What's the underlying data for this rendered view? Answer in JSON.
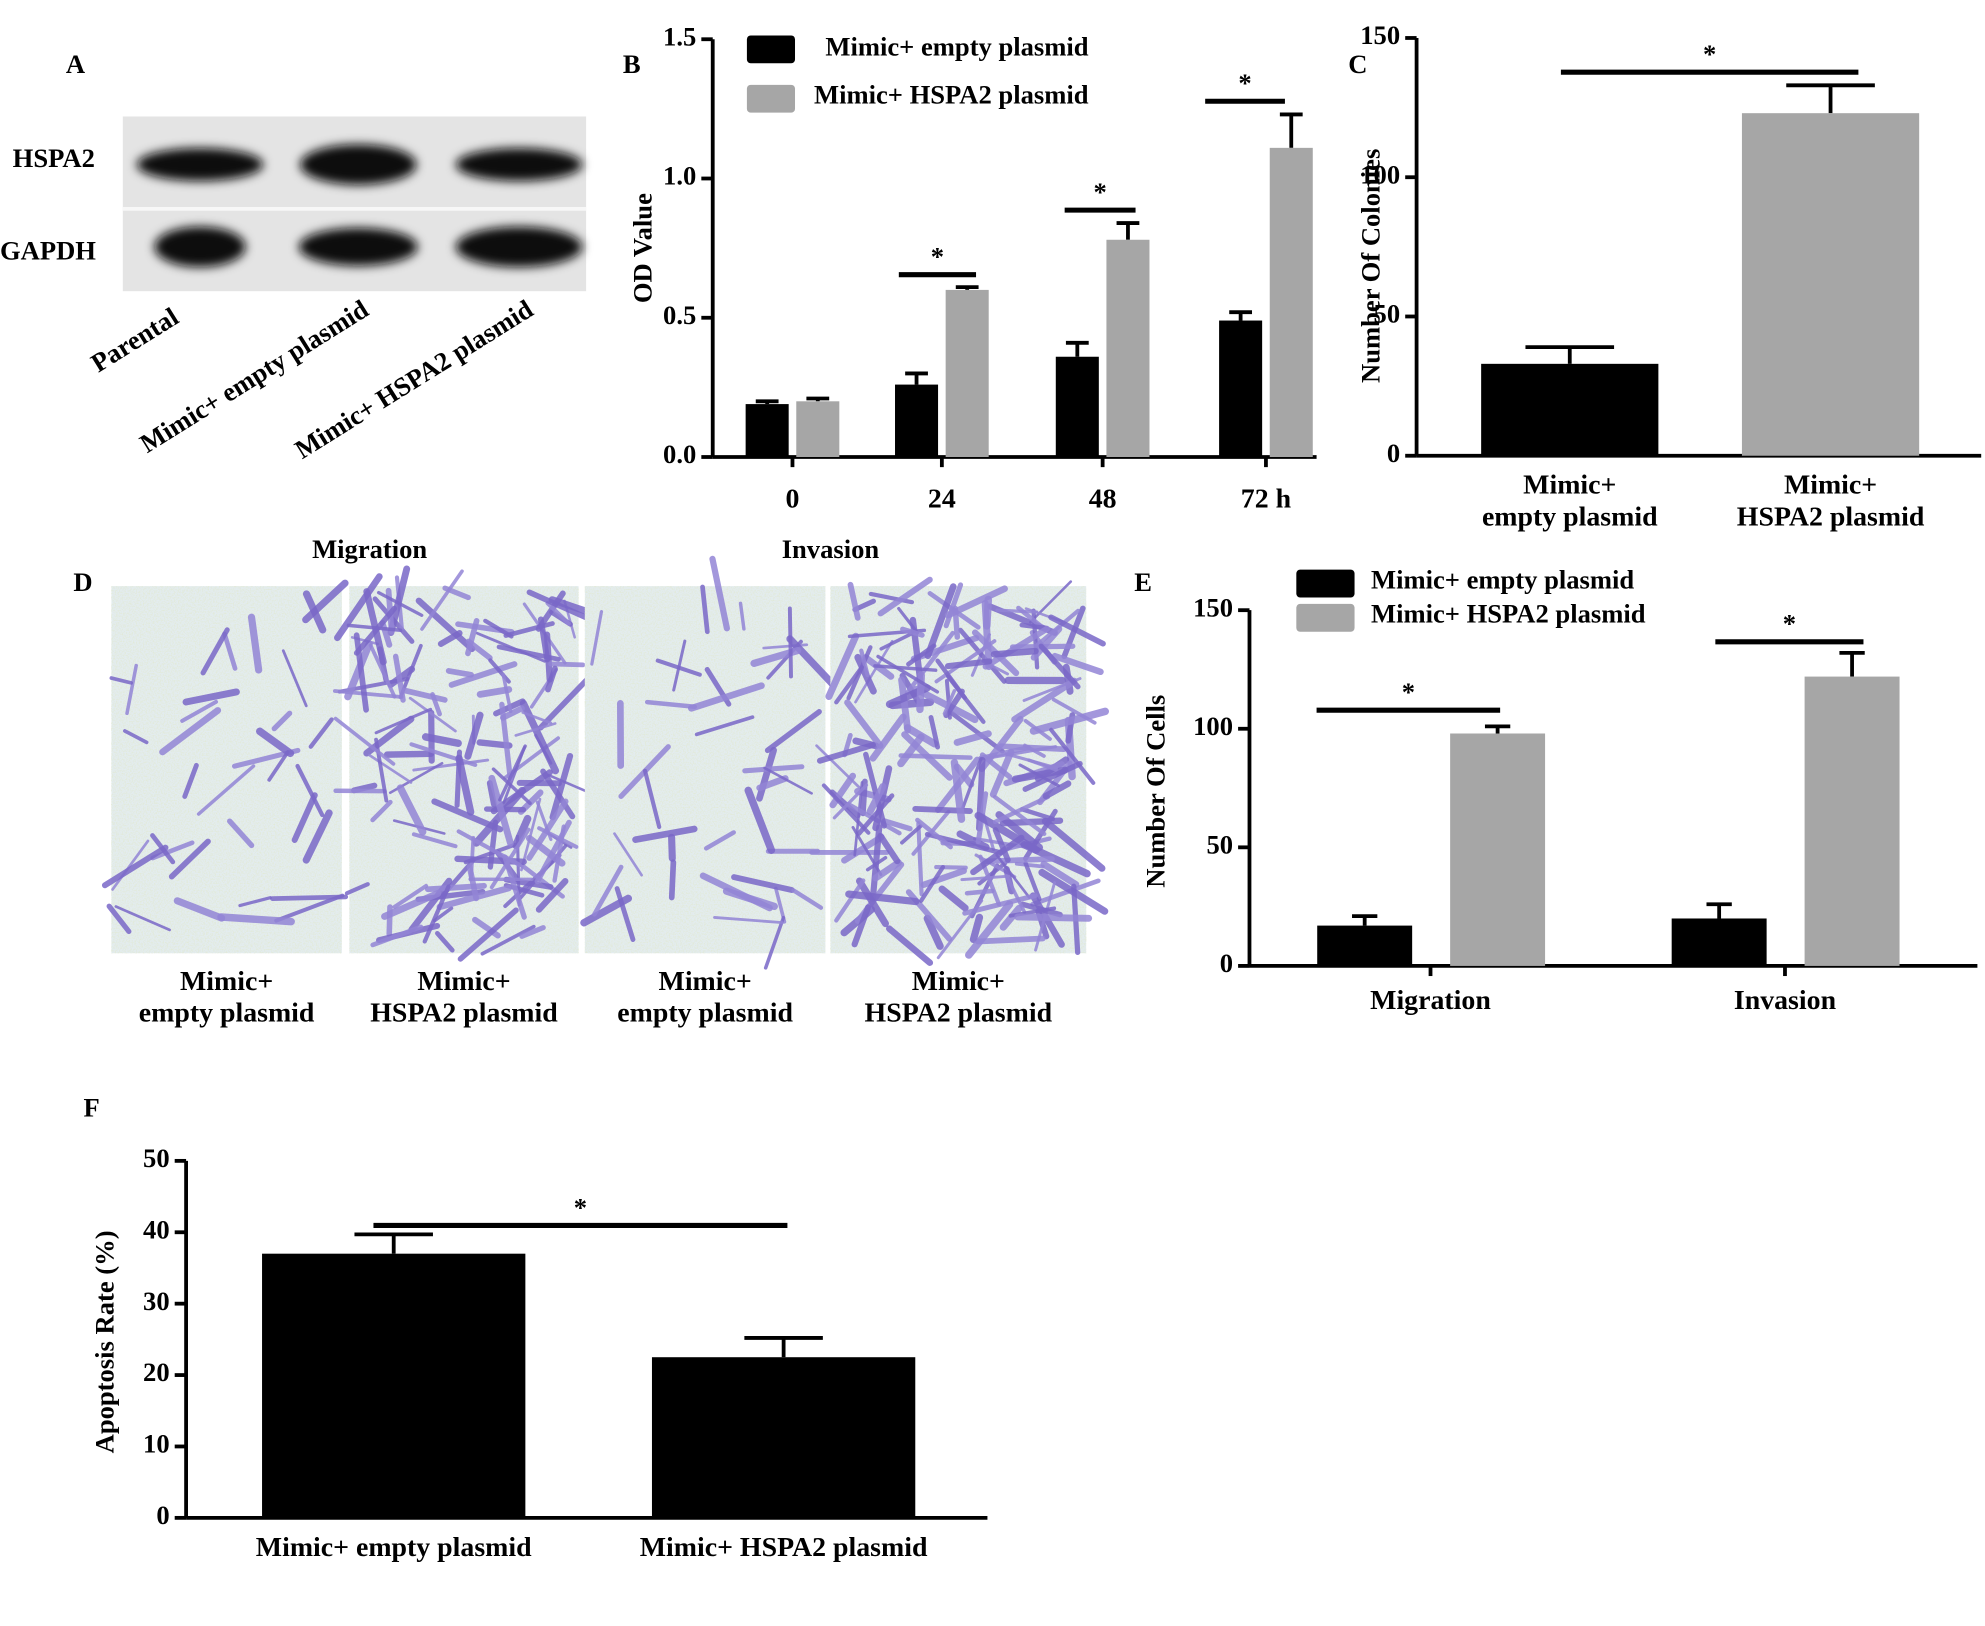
{
  "chart_data": [
    {
      "type": "image",
      "panel": "A",
      "row_labels": [
        "HSPA2",
        "GAPDH"
      ],
      "categories": [
        "Parental",
        "Mimic+ empty plasmid",
        "Mimic+ HSPA2 plasmid"
      ]
    },
    {
      "type": "bar",
      "panel": "B",
      "ylabel": "OD Value",
      "categories": [
        "0",
        "24",
        "48",
        "72 h"
      ],
      "series": [
        {
          "name": "Mimic+ empty plasmid",
          "color": "#000000",
          "values": [
            0.19,
            0.26,
            0.36,
            0.49
          ],
          "errors": [
            0.01,
            0.04,
            0.05,
            0.03
          ]
        },
        {
          "name": "Mimic+ HSPA2 plasmid",
          "color": "#a6a6a6",
          "values": [
            0.2,
            0.6,
            0.78,
            1.11
          ],
          "errors": [
            0.01,
            0.01,
            0.06,
            0.12
          ]
        }
      ],
      "annotations": [
        null,
        "*",
        "*",
        "*"
      ],
      "ylim": [
        0,
        1.5
      ],
      "yticks": [
        {
          "value": 0,
          "label": "0.0"
        },
        {
          "value": 0.5,
          "label": "0.5"
        },
        {
          "value": 1,
          "label": "1.0"
        },
        {
          "value": 1.5,
          "label": "1.5"
        }
      ]
    },
    {
      "type": "bar",
      "panel": "C",
      "ylabel": "Number Of Colonies",
      "categories": [
        "Mimic+\nempty plasmid",
        "Mimic+\nHSPA2 plasmid"
      ],
      "values": [
        33,
        123
      ],
      "errors": [
        6,
        10
      ],
      "colors": [
        "#000000",
        "#a6a6a6"
      ],
      "annotations": [
        "*"
      ],
      "ylim": [
        0,
        150
      ],
      "yticks": [
        0,
        50,
        100,
        150
      ]
    },
    {
      "type": "image",
      "panel": "D",
      "groups": [
        "Migration",
        "Invasion"
      ],
      "categories": [
        "Mimic+\nempty plasmid",
        "Mimic+\nHSPA2 plasmid",
        "Mimic+\nempty plasmid",
        "Mimic+\nHSPA2 plasmid"
      ]
    },
    {
      "type": "bar",
      "panel": "E",
      "ylabel": "Number Of Cells",
      "categories": [
        "Migration",
        "Invasion"
      ],
      "series": [
        {
          "name": "Mimic+ empty plasmid",
          "color": "#000000",
          "values": [
            17,
            20
          ],
          "errors": [
            4,
            6
          ]
        },
        {
          "name": "Mimic+ HSPA2 plasmid",
          "color": "#a6a6a6",
          "values": [
            98,
            122
          ],
          "errors": [
            3,
            10
          ]
        }
      ],
      "annotations": [
        "*",
        "*"
      ],
      "ylim": [
        0,
        150
      ],
      "yticks": [
        0,
        50,
        100,
        150
      ]
    },
    {
      "type": "bar",
      "panel": "F",
      "ylabel": "Apoptosis Rate (%)",
      "categories": [
        "Mimic+ empty plasmid",
        "Mimic+ HSPA2 plasmid"
      ],
      "values": [
        37,
        22.5
      ],
      "errors": [
        2.7,
        2.7
      ],
      "colors": [
        "#000000",
        "#000000"
      ],
      "annotations": [
        "*"
      ],
      "ylim": [
        0,
        50
      ],
      "yticks": [
        0,
        10,
        20,
        30,
        40,
        50
      ]
    }
  ]
}
